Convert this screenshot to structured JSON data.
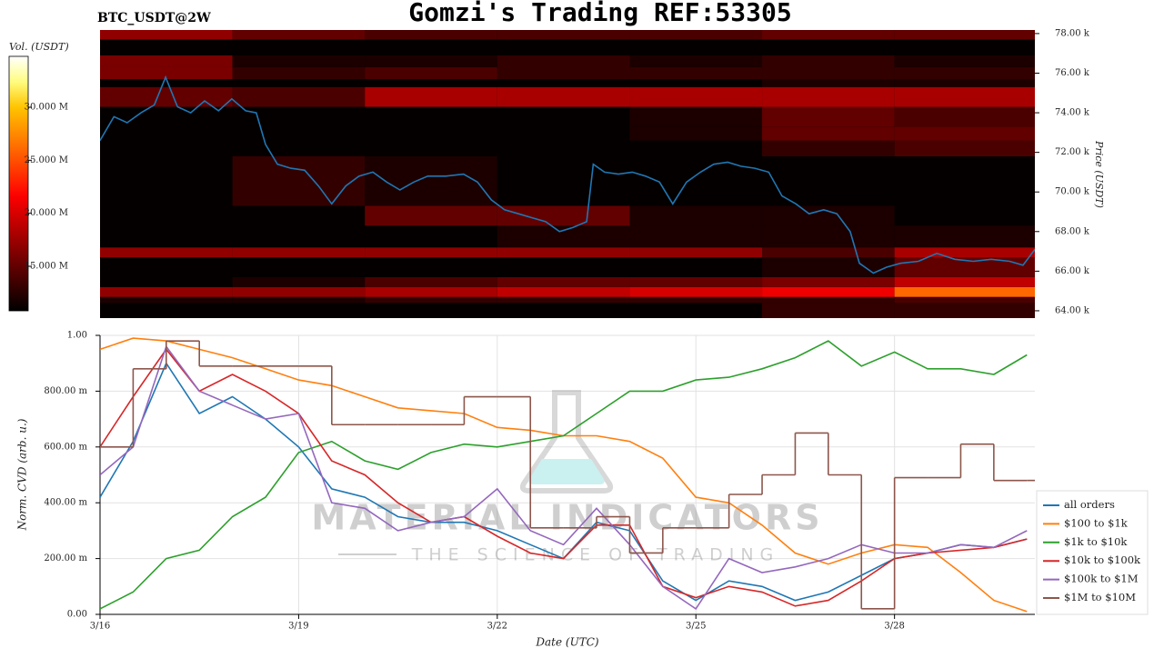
{
  "title": "Gomzi's Trading REF:53305",
  "watermark": {
    "title": "MATERIAL INDICATORS",
    "subtitle": "THE SCIENCE OF TRADING"
  },
  "chart_data": [
    {
      "type": "heatmap",
      "title": "BTC_USDT@2W",
      "ylabel": "Price (USDT)",
      "xlim": [
        0,
        14.12
      ],
      "ylim": [
        63630,
        78180
      ],
      "yticks": [
        {
          "value": 64000,
          "label": "64.00 k"
        },
        {
          "value": 66000,
          "label": "66.00 k"
        },
        {
          "value": 68000,
          "label": "68.00 k"
        },
        {
          "value": 70000,
          "label": "70.00 k"
        },
        {
          "value": 72000,
          "label": "72.00 k"
        },
        {
          "value": 74000,
          "label": "74.00 k"
        },
        {
          "value": 76000,
          "label": "76.00 k"
        },
        {
          "value": 78000,
          "label": "78.00 k"
        }
      ],
      "x_edges": [
        0,
        2,
        4,
        6,
        8,
        10,
        12,
        14.12
      ],
      "y_edges": [
        63630,
        64400,
        64700,
        65200,
        65700,
        66700,
        67200,
        68300,
        69300,
        71800,
        72600,
        73300,
        74300,
        75300,
        75700,
        76300,
        76900,
        77700,
        78180
      ],
      "values": [
        [
          11,
          11,
          11,
          11,
          11,
          13,
          13
        ],
        [
          12,
          12,
          13,
          13,
          13,
          13,
          14
        ],
        [
          17,
          17,
          18,
          19,
          20,
          21,
          26
        ],
        [
          11,
          12,
          14,
          15,
          15,
          16,
          19
        ],
        [
          11,
          11,
          11,
          11,
          11,
          12,
          15
        ],
        [
          17,
          17,
          17,
          17,
          17,
          14,
          18
        ],
        [
          11,
          11,
          11,
          12,
          12,
          12,
          12
        ],
        [
          11,
          11,
          15,
          15,
          12,
          12,
          11
        ],
        [
          11,
          13,
          12,
          11,
          11,
          11,
          11
        ],
        [
          11,
          11,
          11,
          11,
          11,
          13,
          14
        ],
        [
          11,
          11,
          11,
          11,
          12,
          15,
          15
        ],
        [
          11,
          11,
          11,
          11,
          12,
          15,
          14
        ],
        [
          15,
          14,
          18,
          18,
          18,
          18,
          18
        ],
        [
          11,
          11,
          11,
          11,
          11,
          12,
          12
        ],
        [
          16,
          13,
          14,
          13,
          13,
          13,
          13
        ],
        [
          16,
          12,
          12,
          13,
          12,
          13,
          12
        ],
        [
          11,
          11,
          11,
          11,
          11,
          11,
          11
        ],
        [
          17,
          15,
          14,
          14,
          14,
          15,
          15
        ]
      ],
      "colorbar": {
        "label": "Vol. (USDT)",
        "clim": [
          10.8,
          34.8
        ],
        "ticks": [
          {
            "value": 15,
            "label": "15.000 M"
          },
          {
            "value": 20,
            "label": "20.000 M"
          },
          {
            "value": 25,
            "label": "25.000 M"
          },
          {
            "value": 30,
            "label": "30.000 M"
          }
        ]
      },
      "line": {
        "color": "#1f77b4",
        "x": [
          0,
          0.21,
          0.41,
          0.62,
          0.82,
          0.99,
          1.17,
          1.37,
          1.58,
          1.79,
          1.99,
          2.2,
          2.36,
          2.5,
          2.68,
          2.88,
          3.09,
          3.3,
          3.5,
          3.71,
          3.91,
          4.12,
          4.33,
          4.53,
          4.74,
          4.95,
          5.22,
          5.49,
          5.7,
          5.91,
          6.11,
          6.32,
          6.52,
          6.73,
          6.94,
          7.14,
          7.35,
          7.45,
          7.62,
          7.83,
          8.04,
          8.24,
          8.45,
          8.65,
          8.86,
          9.07,
          9.27,
          9.48,
          9.68,
          9.89,
          10.1,
          10.3,
          10.51,
          10.71,
          10.93,
          11.13,
          11.33,
          11.47,
          11.68,
          11.88,
          12.09,
          12.36,
          12.64,
          12.91,
          13.19,
          13.46,
          13.74,
          13.94,
          14.12
        ],
        "values": [
          72600,
          73800,
          73500,
          74000,
          74400,
          75800,
          74300,
          74000,
          74600,
          74100,
          74700,
          74100,
          74000,
          72400,
          71400,
          71200,
          71100,
          70300,
          69400,
          70300,
          70800,
          71000,
          70500,
          70100,
          70500,
          70800,
          70800,
          70900,
          70500,
          69600,
          69100,
          68900,
          68700,
          68500,
          68000,
          68200,
          68500,
          71400,
          71000,
          70900,
          71000,
          70800,
          70500,
          69400,
          70500,
          71000,
          71400,
          71500,
          71300,
          71200,
          71000,
          69800,
          69400,
          68900,
          69100,
          68900,
          68000,
          66400,
          65900,
          66200,
          66400,
          66500,
          66900,
          66600,
          66500,
          66600,
          66500,
          66300,
          67100
        ]
      }
    },
    {
      "type": "line",
      "xlabel": "Date (UTC)",
      "ylabel": "Norm. CVD (arb. u.)",
      "grid": true,
      "legend": "right",
      "xlim": [
        0,
        14.12
      ],
      "ylim": [
        0,
        1
      ],
      "xticks": [
        {
          "value": 0,
          "label": "3/16"
        },
        {
          "value": 3,
          "label": "3/19"
        },
        {
          "value": 6,
          "label": "3/22"
        },
        {
          "value": 9,
          "label": "3/25"
        },
        {
          "value": 12,
          "label": "3/28"
        }
      ],
      "yticks": [
        {
          "value": 0,
          "label": "0.00"
        },
        {
          "value": 0.2,
          "label": "200.00 m"
        },
        {
          "value": 0.4,
          "label": "400.00 m"
        },
        {
          "value": 0.6,
          "label": "600.00 m"
        },
        {
          "value": 0.8,
          "label": "800.00 m"
        },
        {
          "value": 1,
          "label": "1.00"
        }
      ],
      "x": [
        0,
        0.5,
        1,
        1.5,
        2,
        2.5,
        3,
        3.5,
        4,
        4.5,
        5,
        5.5,
        6,
        6.5,
        7,
        7.5,
        8,
        8.5,
        9,
        9.5,
        10,
        10.5,
        11,
        11.5,
        12,
        12.5,
        13,
        13.5,
        14
      ],
      "series": [
        {
          "name": "all orders",
          "color": "#1f77b4",
          "values": [
            0.42,
            0.62,
            0.9,
            0.72,
            0.78,
            0.7,
            0.6,
            0.45,
            0.42,
            0.35,
            0.33,
            0.33,
            0.3,
            0.25,
            0.2,
            0.33,
            0.3,
            0.12,
            0.05,
            0.12,
            0.1,
            0.05,
            0.08,
            0.14,
            0.2,
            0.22,
            0.25,
            0.24,
            0.27
          ]
        },
        {
          "name": "$100 to $1k",
          "color": "#ff7f0e",
          "values": [
            0.95,
            0.99,
            0.98,
            0.95,
            0.92,
            0.88,
            0.84,
            0.82,
            0.78,
            0.74,
            0.73,
            0.72,
            0.67,
            0.66,
            0.64,
            0.64,
            0.62,
            0.56,
            0.42,
            0.4,
            0.32,
            0.22,
            0.18,
            0.22,
            0.25,
            0.24,
            0.15,
            0.05,
            0.01
          ]
        },
        {
          "name": "$1k to $10k",
          "color": "#2ca02c",
          "values": [
            0.02,
            0.08,
            0.2,
            0.23,
            0.35,
            0.42,
            0.58,
            0.62,
            0.55,
            0.52,
            0.58,
            0.61,
            0.6,
            0.62,
            0.64,
            0.72,
            0.8,
            0.8,
            0.84,
            0.85,
            0.88,
            0.92,
            0.98,
            0.89,
            0.94,
            0.88,
            0.88,
            0.86,
            0.93
          ]
        },
        {
          "name": "$10k to $100k",
          "color": "#d62728",
          "values": [
            0.6,
            0.78,
            0.95,
            0.8,
            0.86,
            0.8,
            0.72,
            0.55,
            0.5,
            0.4,
            0.33,
            0.35,
            0.28,
            0.22,
            0.2,
            0.32,
            0.32,
            0.1,
            0.06,
            0.1,
            0.08,
            0.03,
            0.05,
            0.12,
            0.2,
            0.22,
            0.23,
            0.24,
            0.27
          ]
        },
        {
          "name": "$100k to $1M",
          "color": "#9467bd",
          "values": [
            0.5,
            0.6,
            0.96,
            0.8,
            0.75,
            0.7,
            0.72,
            0.4,
            0.38,
            0.3,
            0.33,
            0.35,
            0.45,
            0.3,
            0.25,
            0.38,
            0.25,
            0.1,
            0.02,
            0.2,
            0.15,
            0.17,
            0.2,
            0.25,
            0.22,
            0.22,
            0.25,
            0.24,
            0.3
          ]
        },
        {
          "name": "$1M to $10M",
          "color": "#8c564b",
          "drawstyle": "steps-post",
          "values": [
            0.6,
            0.88,
            0.98,
            0.89,
            0.89,
            0.89,
            0.89,
            0.68,
            0.68,
            0.68,
            0.68,
            0.78,
            0.78,
            0.31,
            0.31,
            0.35,
            0.22,
            0.31,
            0.31,
            0.43,
            0.5,
            0.65,
            0.5,
            0.02,
            0.49,
            0.49,
            0.61,
            0.48,
            0.48
          ]
        }
      ]
    }
  ]
}
